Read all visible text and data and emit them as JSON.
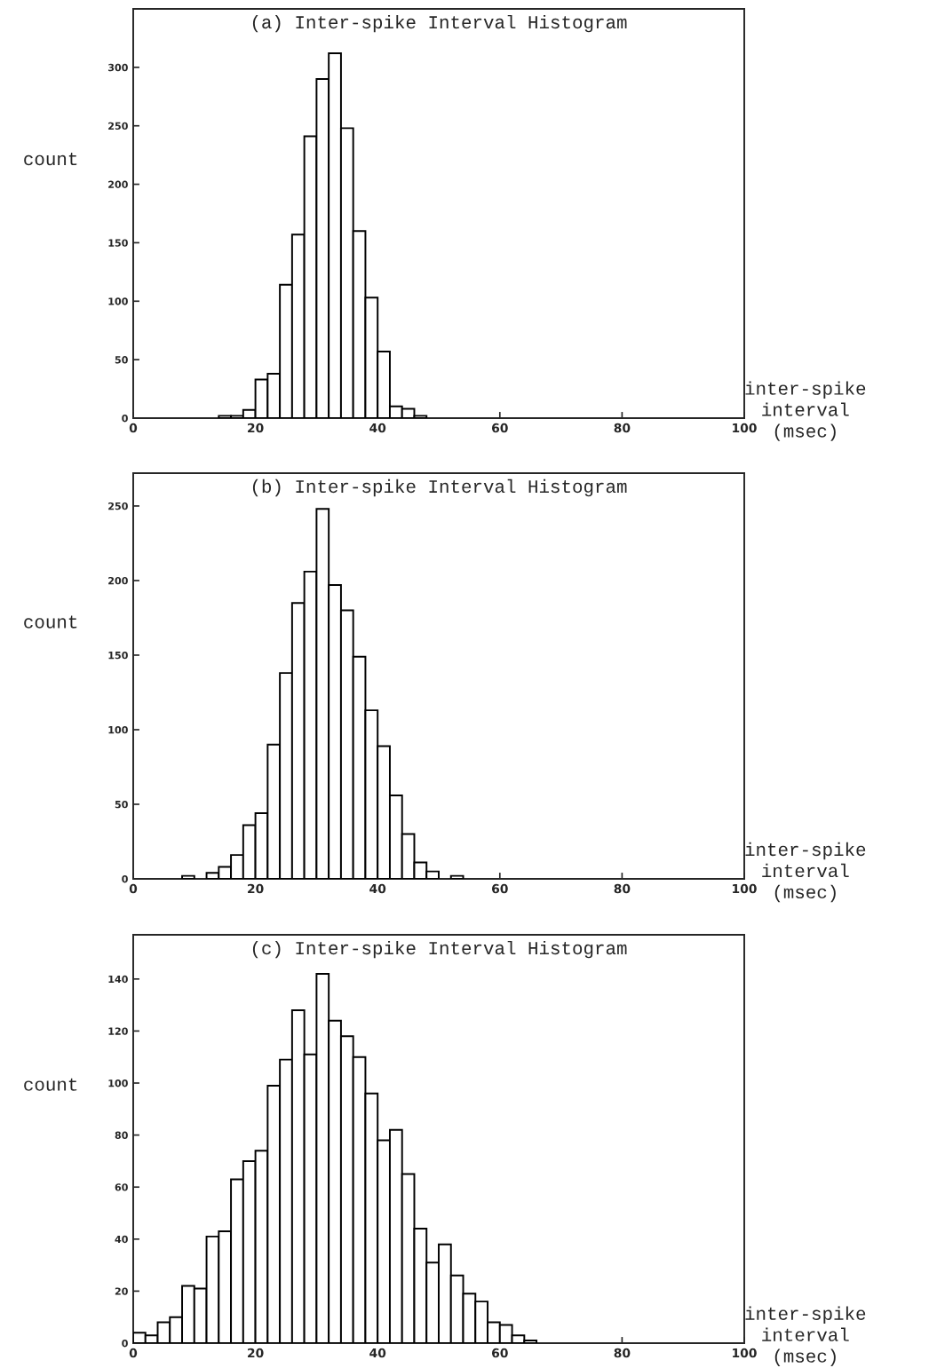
{
  "chart_data": [
    {
      "type": "histogram",
      "title": "(a) Inter-spike Interval Histogram",
      "xlabel": "inter-spike\ninterval\n(msec)",
      "ylabel": "count",
      "color": "#ffffff",
      "bins": [
        0,
        2,
        4,
        6,
        8,
        10,
        12,
        14,
        16,
        18,
        20,
        22,
        24,
        26,
        28,
        30,
        32,
        34,
        36,
        38,
        40,
        42,
        44,
        46,
        48,
        50,
        52,
        54,
        56,
        58,
        60,
        62,
        64,
        66,
        68,
        70,
        72,
        74,
        76,
        78,
        80,
        82,
        84,
        86,
        88,
        90,
        92,
        94,
        96,
        98,
        100
      ],
      "values": [
        0,
        0,
        0,
        0,
        0,
        0,
        0,
        2,
        2,
        7,
        33,
        38,
        114,
        157,
        241,
        290,
        312,
        248,
        160,
        103,
        57,
        10,
        8,
        2,
        0,
        0,
        0,
        0,
        0,
        0,
        0,
        0,
        0,
        0,
        0,
        0,
        0,
        0,
        0,
        0,
        0,
        0,
        0,
        0,
        0,
        0,
        0,
        0,
        0,
        0
      ],
      "xlim": [
        0,
        100
      ],
      "xticks": [
        0,
        20,
        40,
        60,
        80,
        100
      ],
      "ylim": [
        0,
        350
      ],
      "yticks": [
        0,
        50,
        100,
        150,
        200,
        250,
        300
      ],
      "grid": false,
      "legend": false
    },
    {
      "type": "histogram",
      "title": "(b) Inter-spike Interval Histogram",
      "xlabel": "inter-spike\ninterval\n(msec)",
      "ylabel": "count",
      "color": "#ffffff",
      "bins": [
        0,
        2,
        4,
        6,
        8,
        10,
        12,
        14,
        16,
        18,
        20,
        22,
        24,
        26,
        28,
        30,
        32,
        34,
        36,
        38,
        40,
        42,
        44,
        46,
        48,
        50,
        52,
        54,
        56,
        58,
        60,
        62,
        64,
        66,
        68,
        70,
        72,
        74,
        76,
        78,
        80,
        82,
        84,
        86,
        88,
        90,
        92,
        94,
        96,
        98,
        100
      ],
      "values": [
        0,
        0,
        0,
        0,
        2,
        0,
        4,
        8,
        16,
        36,
        44,
        90,
        138,
        185,
        206,
        248,
        197,
        180,
        149,
        113,
        89,
        56,
        30,
        11,
        5,
        0,
        2,
        0,
        0,
        0,
        0,
        0,
        0,
        0,
        0,
        0,
        0,
        0,
        0,
        0,
        0,
        0,
        0,
        0,
        0,
        0,
        0,
        0,
        0,
        0
      ],
      "xlim": [
        0,
        100
      ],
      "xticks": [
        0,
        20,
        40,
        60,
        80,
        100
      ],
      "ylim": [
        0,
        272
      ],
      "yticks": [
        0,
        50,
        100,
        150,
        200,
        250
      ],
      "grid": false,
      "legend": false
    },
    {
      "type": "histogram",
      "title": "(c) Inter-spike Interval Histogram",
      "xlabel": "inter-spike\ninterval\n(msec)",
      "ylabel": "count",
      "color": "#ffffff",
      "bins": [
        0,
        2,
        4,
        6,
        8,
        10,
        12,
        14,
        16,
        18,
        20,
        22,
        24,
        26,
        28,
        30,
        32,
        34,
        36,
        38,
        40,
        42,
        44,
        46,
        48,
        50,
        52,
        54,
        56,
        58,
        60,
        62,
        64,
        66,
        68,
        70,
        72,
        74,
        76,
        78,
        80,
        82,
        84,
        86,
        88,
        90,
        92,
        94,
        96,
        98,
        100
      ],
      "values": [
        4,
        3,
        8,
        10,
        22,
        21,
        41,
        43,
        63,
        70,
        74,
        99,
        109,
        128,
        111,
        142,
        124,
        118,
        110,
        96,
        78,
        82,
        65,
        44,
        31,
        38,
        26,
        19,
        16,
        8,
        7,
        3,
        1,
        0,
        0,
        0,
        0,
        0,
        0,
        0,
        0,
        0,
        0,
        0,
        0,
        0,
        0,
        0,
        0,
        0
      ],
      "xlim": [
        0,
        100
      ],
      "xticks": [
        0,
        20,
        40,
        60,
        80,
        100
      ],
      "ylim": [
        0,
        157
      ],
      "yticks": [
        0,
        20,
        40,
        60,
        80,
        100,
        120,
        140
      ],
      "grid": false,
      "legend": false
    }
  ]
}
